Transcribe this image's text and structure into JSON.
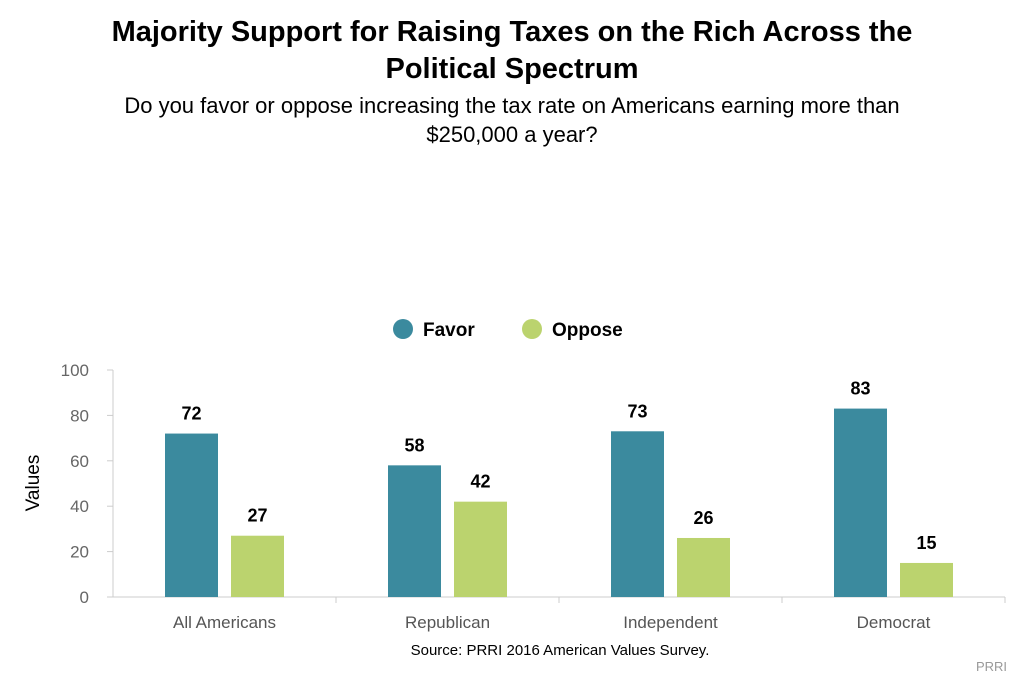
{
  "colors": {
    "favor": "#3b8a9e",
    "oppose": "#bbd36e",
    "axis": "#cccccc"
  },
  "title_line1": "Majority Support for Raising Taxes on the Rich Across the",
  "title_line2": "Political Spectrum",
  "subtitle_line1": "Do you favor or oppose increasing the tax rate on Americans earning more than",
  "subtitle_line2": "$250,000 a year?",
  "source": "Source: PRRI 2016 American Values Survey.",
  "credit": "PRRI",
  "chart_data": {
    "type": "bar",
    "categories": [
      "All Americans",
      "Republican",
      "Independent",
      "Democrat"
    ],
    "series": [
      {
        "name": "Favor",
        "values": [
          72,
          58,
          73,
          83
        ]
      },
      {
        "name": "Oppose",
        "values": [
          27,
          42,
          26,
          15
        ]
      }
    ],
    "ylabel": "Values",
    "xlabel": "",
    "ylim": [
      0,
      100
    ],
    "yticks": [
      "0",
      "20",
      "40",
      "60",
      "80",
      "100"
    ],
    "legend_position": "top-center",
    "grid": false
  }
}
